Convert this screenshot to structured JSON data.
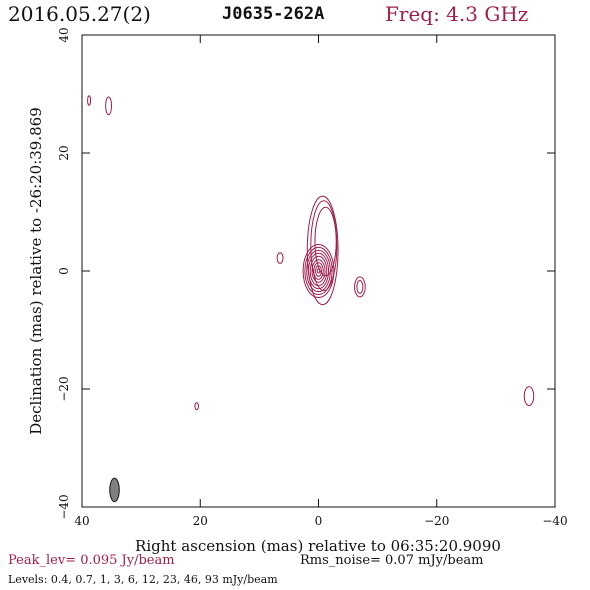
{
  "header": {
    "date": "2016.05.27(2)",
    "source": "J0635-262A",
    "freq": "Freq: 4.3 GHz"
  },
  "footer": {
    "peak": "Peak_lev=  0.095 Jy/beam",
    "rms": "Rms_noise= 0.07 mJy/beam",
    "levels": "Levels: 0.4, 0.7,   1,   3,   6,  12,  23,  46,  93 mJy/beam"
  },
  "colors": {
    "contour": "#a01f4c",
    "beam": "#808080",
    "text": "#111111"
  },
  "chart_data": {
    "type": "contour",
    "xlabel": "Right ascension (mas) relative to 06:35:20.9090",
    "ylabel": "Declination (mas) relative to -26:20:39.869",
    "xlim": [
      40,
      -40
    ],
    "ylim": [
      -40,
      40
    ],
    "xticks": [
      40,
      20,
      0,
      -20,
      -40
    ],
    "yticks": [
      -40,
      -20,
      0,
      20,
      40
    ],
    "xtick_labels": [
      "40",
      "20",
      "0",
      "−20",
      "−40"
    ],
    "ytick_labels": [
      "−40",
      "−20",
      "0",
      "20",
      "40"
    ],
    "contour_levels_mJy": [
      0.4,
      0.7,
      1,
      3,
      6,
      12,
      23,
      46,
      93
    ],
    "core": {
      "x": 0,
      "y": 0,
      "contours": [
        {
          "rx": 2.6,
          "ry": 4.5
        },
        {
          "rx": 2.3,
          "ry": 4.0
        },
        {
          "rx": 2.0,
          "ry": 3.5
        },
        {
          "rx": 1.7,
          "ry": 3.0
        },
        {
          "rx": 1.4,
          "ry": 2.5
        },
        {
          "rx": 1.1,
          "ry": 1.9
        },
        {
          "rx": 0.8,
          "ry": 1.4
        },
        {
          "rx": 0.5,
          "ry": 0.9
        },
        {
          "rx": 0.2,
          "ry": 0.35
        }
      ]
    },
    "jet_contours": [
      {
        "x": -0.7,
        "y": 3.5,
        "rx": 2.6,
        "ry": 9.2
      },
      {
        "x": -0.9,
        "y": 4.3,
        "rx": 2.2,
        "ry": 7.6
      },
      {
        "x": -1.2,
        "y": 5.0,
        "rx": 1.8,
        "ry": 5.8
      }
    ],
    "components": [
      {
        "x": -7.0,
        "y": -2.7,
        "rx": 0.9,
        "ry": 1.7
      },
      {
        "x": -7.0,
        "y": -2.7,
        "rx": 0.5,
        "ry": 1.1
      },
      {
        "x": 6.5,
        "y": 2.2,
        "rx": 0.5,
        "ry": 0.9
      },
      {
        "x": 35.5,
        "y": 28.0,
        "rx": 0.5,
        "ry": 1.5
      },
      {
        "x": 38.8,
        "y": 28.9,
        "rx": 0.25,
        "ry": 0.8
      },
      {
        "x": -35.6,
        "y": -21.2,
        "rx": 0.8,
        "ry": 1.6
      },
      {
        "x": 20.6,
        "y": -22.9,
        "rx": 0.3,
        "ry": 0.6
      }
    ],
    "beam": {
      "x": 34.5,
      "y": -37.1,
      "rx": 0.8,
      "ry": 2.0
    }
  }
}
